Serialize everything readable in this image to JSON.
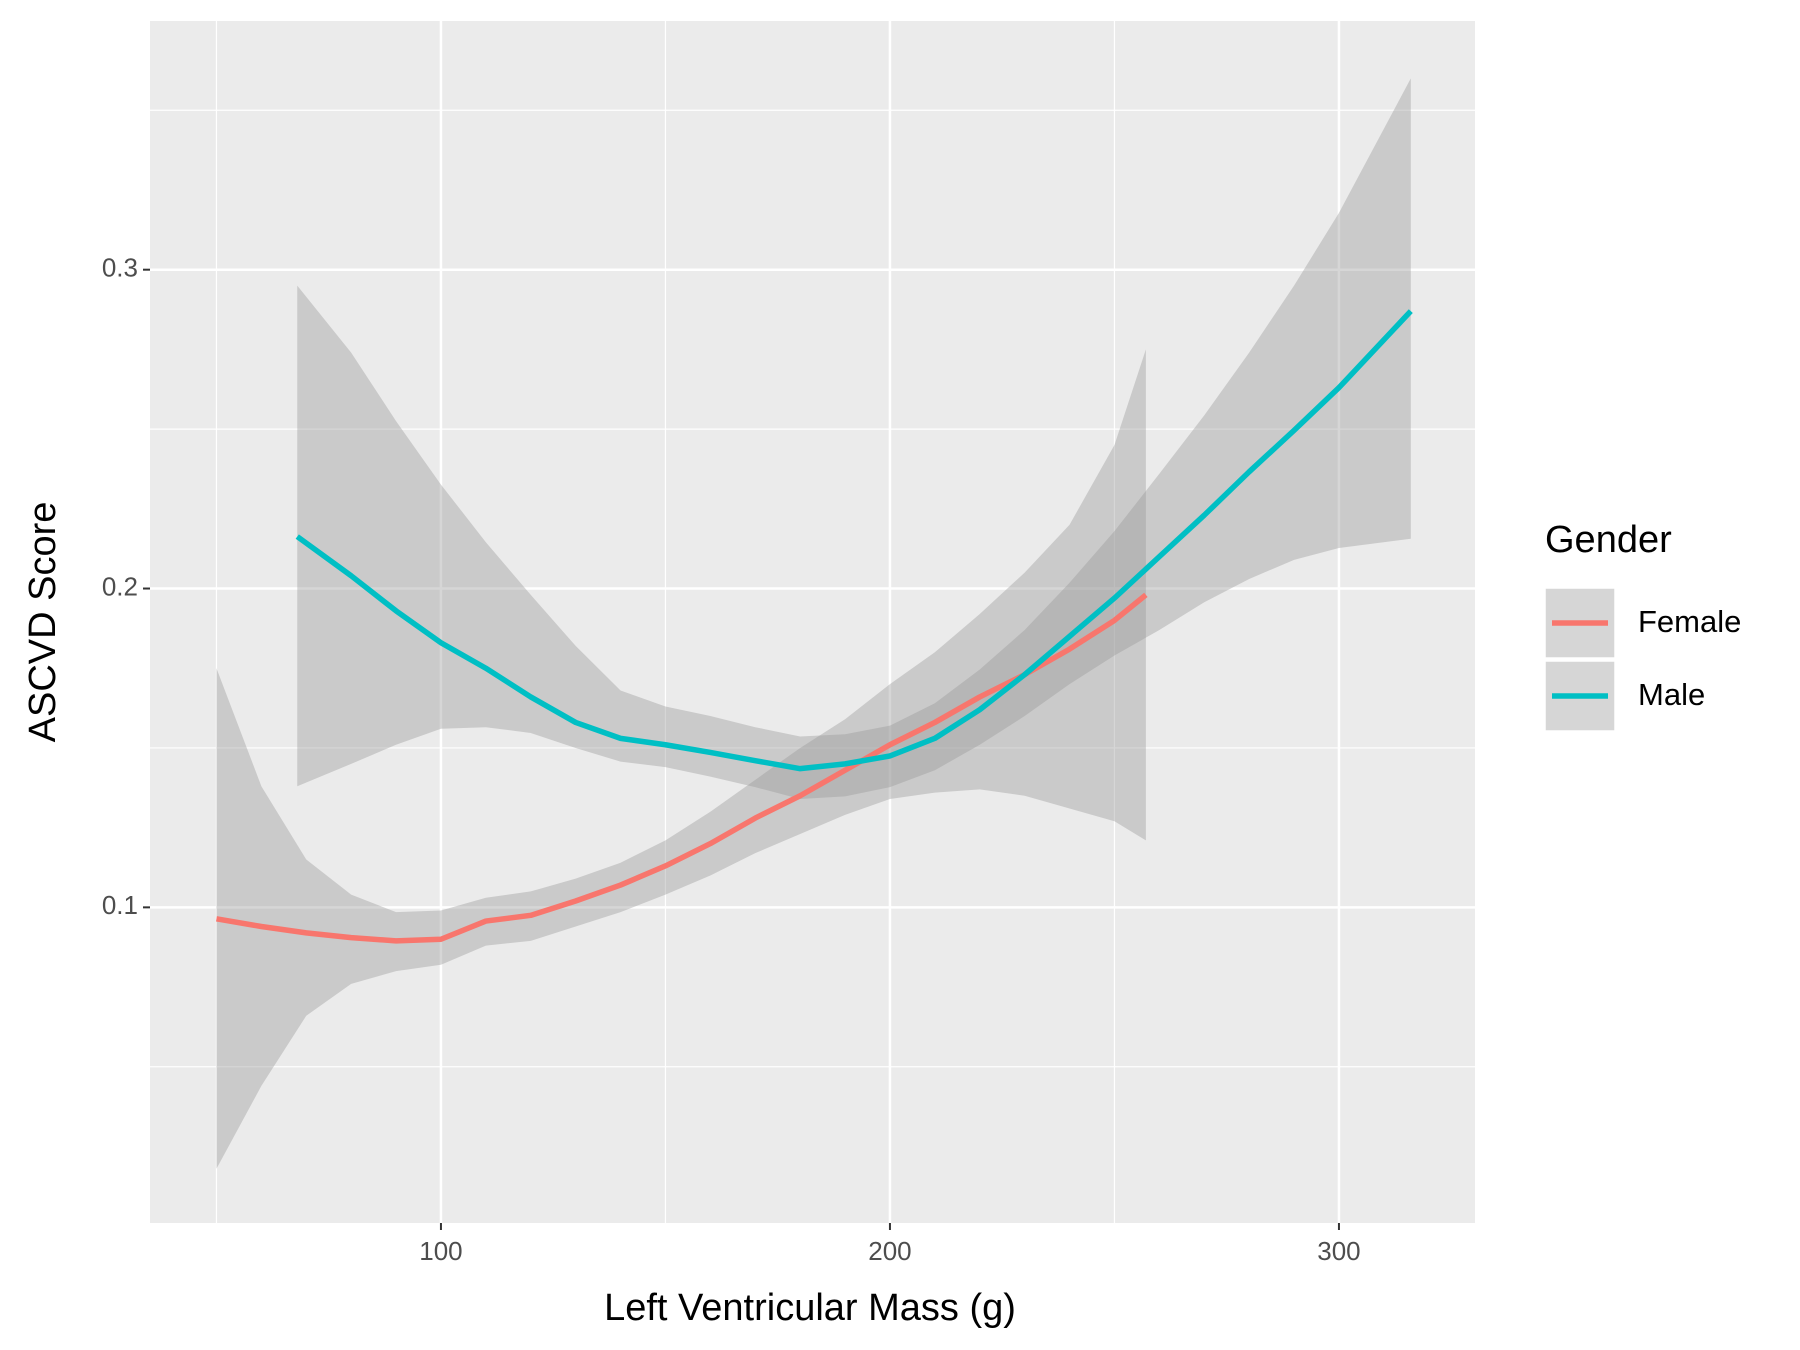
{
  "chart_data": {
    "type": "line",
    "x_label": "Left Ventricular Mass (g)",
    "y_label": "ASCVD Score",
    "legend_title": "Gender",
    "legend_position": "right",
    "grid": true,
    "band_color": "#999999",
    "xlim": [
      35.2,
      330.3
    ],
    "ylim": [
      0.001,
      0.378
    ],
    "xticks": [
      100,
      200,
      300
    ],
    "yticks": [
      0.1,
      0.2,
      0.3
    ],
    "x_minor_ticks": [
      50,
      150,
      250
    ],
    "y_minor_ticks": [
      0.05,
      0.15,
      0.25,
      0.35
    ],
    "series": [
      {
        "name": "Female",
        "color": "#F8766D",
        "x": [
          50,
          60,
          70,
          80,
          90,
          100,
          110,
          120,
          130,
          140,
          150,
          160,
          170,
          180,
          190,
          200,
          210,
          220,
          230,
          240,
          250,
          257
        ],
        "values": [
          0.0964,
          0.094,
          0.092,
          0.0905,
          0.0895,
          0.09,
          0.0957,
          0.0975,
          0.102,
          0.107,
          0.113,
          0.12,
          0.128,
          0.135,
          0.143,
          0.151,
          0.158,
          0.166,
          0.173,
          0.181,
          0.19,
          0.198
        ],
        "lower": [
          0.018,
          0.044,
          0.066,
          0.076,
          0.08,
          0.082,
          0.088,
          0.0895,
          0.094,
          0.0985,
          0.104,
          0.11,
          0.117,
          0.123,
          0.129,
          0.134,
          0.136,
          0.137,
          0.135,
          0.131,
          0.127,
          0.121
        ],
        "upper": [
          0.175,
          0.138,
          0.115,
          0.104,
          0.0985,
          0.099,
          0.103,
          0.105,
          0.109,
          0.114,
          0.121,
          0.13,
          0.14,
          0.15,
          0.159,
          0.17,
          0.18,
          0.192,
          0.205,
          0.22,
          0.245,
          0.275
        ]
      },
      {
        "name": "Male",
        "color": "#00BFC4",
        "x": [
          68,
          80,
          90,
          100,
          110,
          120,
          130,
          140,
          150,
          160,
          170,
          180,
          190,
          200,
          210,
          220,
          230,
          240,
          250,
          260,
          270,
          280,
          290,
          300,
          316
        ],
        "values": [
          0.2163,
          0.204,
          0.193,
          0.183,
          0.175,
          0.166,
          0.158,
          0.153,
          0.151,
          0.1486,
          0.146,
          0.1435,
          0.145,
          0.1475,
          0.153,
          0.162,
          0.173,
          0.185,
          0.197,
          0.21,
          0.223,
          0.2366,
          0.2496,
          0.263,
          0.287
        ],
        "lower": [
          0.138,
          0.145,
          0.151,
          0.156,
          0.1565,
          0.1547,
          0.15,
          0.1457,
          0.144,
          0.141,
          0.1377,
          0.134,
          0.1348,
          0.1377,
          0.143,
          0.151,
          0.16,
          0.17,
          0.179,
          0.187,
          0.1957,
          0.203,
          0.209,
          0.2127,
          0.2156
        ],
        "upper": [
          0.295,
          0.274,
          0.2525,
          0.2326,
          0.2145,
          0.198,
          0.182,
          0.168,
          0.163,
          0.16,
          0.1565,
          0.1536,
          0.1543,
          0.157,
          0.164,
          0.1746,
          0.187,
          0.2018,
          0.218,
          0.236,
          0.2543,
          0.274,
          0.295,
          0.3178,
          0.36
        ]
      }
    ]
  }
}
